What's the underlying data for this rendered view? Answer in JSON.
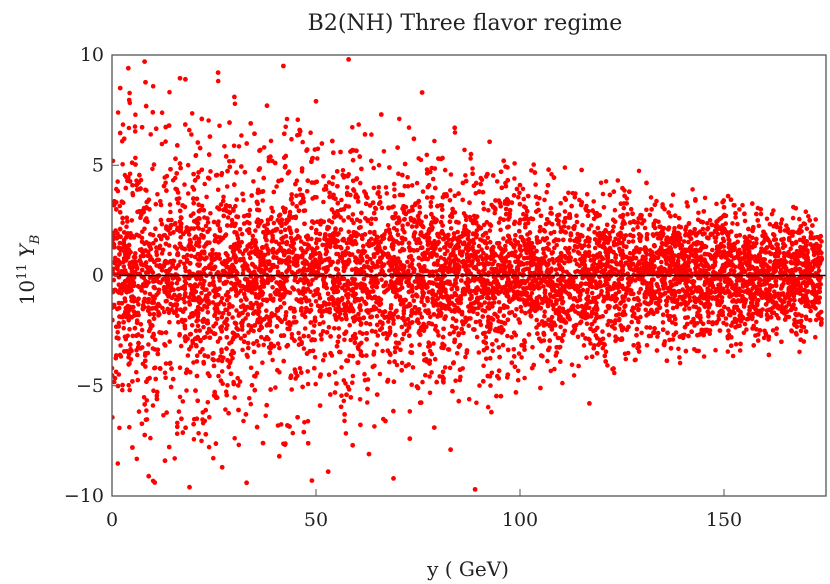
{
  "chart_data": {
    "type": "scatter",
    "title": "B2(NH) Three flavor regime",
    "xlabel": "y ( GeV)",
    "ylabel": {
      "prefix": "10",
      "exponent": "11",
      "symbol": "Y",
      "subscript": "B"
    },
    "xlim": [
      0,
      175
    ],
    "ylim": [
      -10,
      10
    ],
    "xticks": [
      {
        "value": 0,
        "label": "0"
      },
      {
        "value": 50,
        "label": "50"
      },
      {
        "value": 100,
        "label": "100"
      },
      {
        "value": 150,
        "label": "150"
      }
    ],
    "yticks": [
      {
        "value": -10,
        "label": "−10"
      },
      {
        "value": -5,
        "label": "−5"
      },
      {
        "value": 0,
        "label": "0"
      },
      {
        "value": 5,
        "label": "5"
      },
      {
        "value": 10,
        "label": "10"
      }
    ],
    "grid": false,
    "reference_line": {
      "y": 0,
      "color": "#000000"
    },
    "marker_color": "#ff0000",
    "series": [
      {
        "points": [
          [
            2,
            8.5
          ],
          [
            3,
            6.2
          ],
          [
            4,
            9.4
          ],
          [
            5,
            -7.8
          ],
          [
            6,
            4.1
          ],
          [
            7,
            -3.3
          ],
          [
            8,
            9.7
          ],
          [
            9,
            -9.1
          ],
          [
            10,
            7.4
          ],
          [
            11,
            -5.6
          ],
          [
            12,
            3.2
          ],
          [
            13,
            -8.4
          ],
          [
            14,
            6.8
          ],
          [
            15,
            -4.7
          ],
          [
            16,
            5.9
          ],
          [
            17,
            -6.5
          ],
          [
            18,
            8.9
          ],
          [
            19,
            -9.6
          ],
          [
            20,
            4.6
          ],
          [
            21,
            -2.8
          ],
          [
            22,
            7.1
          ],
          [
            23,
            -7.2
          ],
          [
            24,
            6.3
          ],
          [
            25,
            -4.1
          ],
          [
            26,
            9.2
          ],
          [
            27,
            -8.7
          ],
          [
            28,
            5.4
          ],
          [
            29,
            -3.9
          ],
          [
            30,
            8.1
          ],
          [
            31,
            -6.1
          ],
          [
            32,
            3.7
          ],
          [
            33,
            -9.4
          ],
          [
            34,
            6.9
          ],
          [
            35,
            -5.2
          ],
          [
            36,
            4.8
          ],
          [
            37,
            -7.6
          ],
          [
            38,
            7.7
          ],
          [
            39,
            -3.1
          ],
          [
            40,
            5.1
          ],
          [
            41,
            -8.2
          ],
          [
            42,
            9.5
          ],
          [
            43,
            -6.8
          ],
          [
            44,
            3.5
          ],
          [
            45,
            -4.4
          ],
          [
            46,
            6.6
          ],
          [
            47,
            -7.1
          ],
          [
            48,
            4.3
          ],
          [
            49,
            -9.3
          ],
          [
            50,
            7.9
          ],
          [
            51,
            -5.9
          ],
          [
            52,
            3.9
          ],
          [
            53,
            -8.9
          ],
          [
            54,
            6.1
          ],
          [
            55,
            -4.9
          ],
          [
            56,
            5.6
          ],
          [
            57,
            -6.3
          ],
          [
            58,
            9.8
          ],
          [
            59,
            -7.7
          ],
          [
            60,
            4.4
          ],
          [
            61,
            -3.6
          ],
          [
            62,
            6.4
          ],
          [
            63,
            -8.1
          ],
          [
            64,
            3.3
          ],
          [
            65,
            -5.4
          ],
          [
            66,
            7.3
          ],
          [
            67,
            -6.6
          ],
          [
            68,
            4.9
          ],
          [
            69,
            -9.2
          ],
          [
            70,
            5.8
          ],
          [
            71,
            -4.3
          ],
          [
            72,
            3.1
          ],
          [
            73,
            -7.4
          ],
          [
            74,
            6.2
          ],
          [
            75,
            -5.1
          ],
          [
            76,
            8.3
          ],
          [
            77,
            -3.8
          ],
          [
            78,
            4.7
          ],
          [
            79,
            -6.9
          ],
          [
            80,
            5.3
          ],
          [
            81,
            -4.6
          ],
          [
            82,
            3.6
          ],
          [
            83,
            -7.9
          ],
          [
            84,
            6.7
          ],
          [
            85,
            -5.7
          ],
          [
            86,
            4.2
          ],
          [
            87,
            -3.4
          ],
          [
            88,
            5.5
          ],
          [
            89,
            -9.7
          ],
          [
            90,
            3.8
          ],
          [
            91,
            -4.8
          ],
          [
            92,
            4.6
          ],
          [
            93,
            -6.2
          ],
          [
            94,
            3.4
          ],
          [
            95,
            -3.7
          ],
          [
            96,
            5.2
          ],
          [
            97,
            -4.5
          ],
          [
            98,
            3.3
          ],
          [
            99,
            -5.3
          ],
          [
            100,
            4.1
          ],
          [
            101,
            -3.2
          ],
          [
            102,
            3.6
          ],
          [
            103,
            -4.2
          ],
          [
            104,
            2.9
          ],
          [
            105,
            -5.1
          ],
          [
            107,
            4.8
          ],
          [
            109,
            -3.5
          ],
          [
            111,
            3.5
          ],
          [
            113,
            -2.6
          ],
          [
            115,
            3.2
          ],
          [
            117,
            -5.8
          ],
          [
            119,
            2.7
          ],
          [
            121,
            -3.9
          ],
          [
            123,
            3.8
          ],
          [
            125,
            -2.9
          ],
          [
            127,
            2.4
          ],
          [
            129,
            -3.1
          ],
          [
            131,
            4.2
          ],
          [
            133,
            -2.4
          ],
          [
            135,
            3.1
          ],
          [
            137,
            -3.3
          ],
          [
            139,
            2.6
          ],
          [
            141,
            -2.2
          ],
          [
            143,
            3.4
          ],
          [
            145,
            -2.7
          ],
          [
            147,
            2.3
          ],
          [
            149,
            -2.5
          ],
          [
            151,
            3.6
          ],
          [
            153,
            -2.1
          ],
          [
            155,
            2.8
          ],
          [
            157,
            -2.4
          ],
          [
            159,
            3.0
          ],
          [
            161,
            -3.6
          ],
          [
            163,
            2.2
          ],
          [
            165,
            -2.0
          ],
          [
            167,
            3.1
          ],
          [
            169,
            -2.3
          ],
          [
            171,
            2.5
          ],
          [
            173,
            -1.8
          ]
        ]
      }
    ],
    "dense_band": {
      "x_start": 0,
      "x_end": 174,
      "core_halfwidth": 1.6,
      "envelope_start": 10,
      "envelope_end": 3,
      "point_count": 9000
    }
  }
}
